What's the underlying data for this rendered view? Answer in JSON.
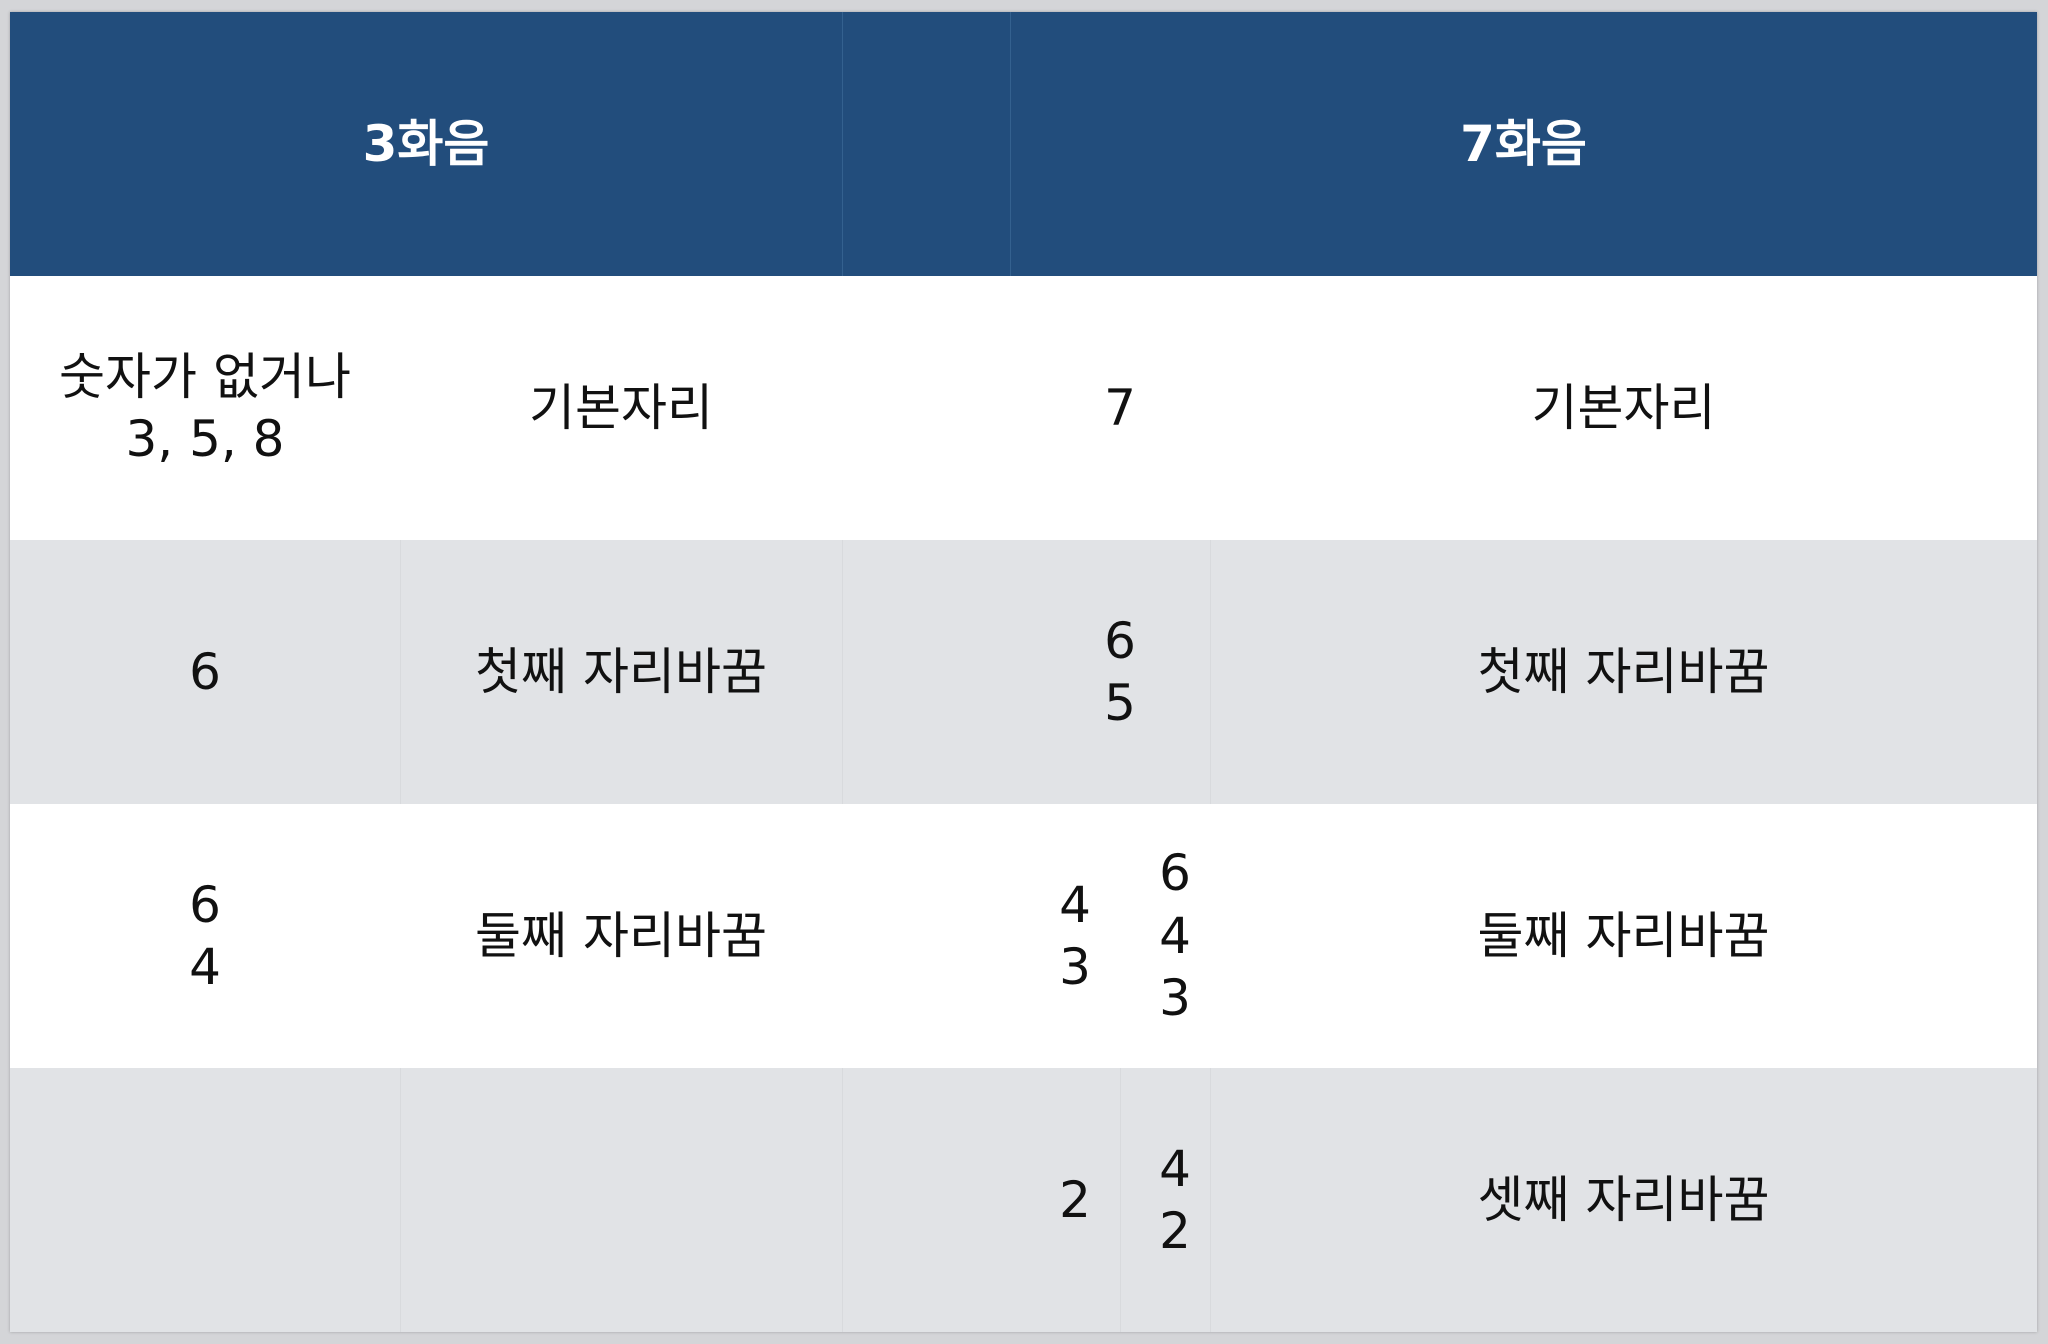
{
  "header": {
    "left": "3화음",
    "right": "7화음"
  },
  "rows": [
    {
      "triad_numbers": "숫자가 없거나\n3, 5, 8",
      "triad_name": "기본자리",
      "seventh_numbers_a": "",
      "seventh_numbers_b": "7",
      "seventh_name": "기본자리"
    },
    {
      "triad_numbers": "6",
      "triad_name": "첫째 자리바꿈",
      "seventh_numbers_a": "",
      "seventh_numbers_b": "6\n5",
      "seventh_name": "첫째 자리바꿈"
    },
    {
      "triad_numbers": "6\n4",
      "triad_name": "둘째 자리바꿈",
      "seventh_numbers_a": "4\n3",
      "seventh_numbers_b": "6\n4\n3",
      "seventh_name": "둘째 자리바꿈"
    },
    {
      "triad_numbers": "",
      "triad_name": "",
      "seventh_numbers_a": "2",
      "seventh_numbers_b": "4\n2",
      "seventh_name": "셋째 자리바꿈"
    }
  ],
  "colors": {
    "header_bg": "#224d7c",
    "header_text": "#ffffff",
    "row_gray": "#e1e3e6",
    "row_white": "#ffffff"
  }
}
